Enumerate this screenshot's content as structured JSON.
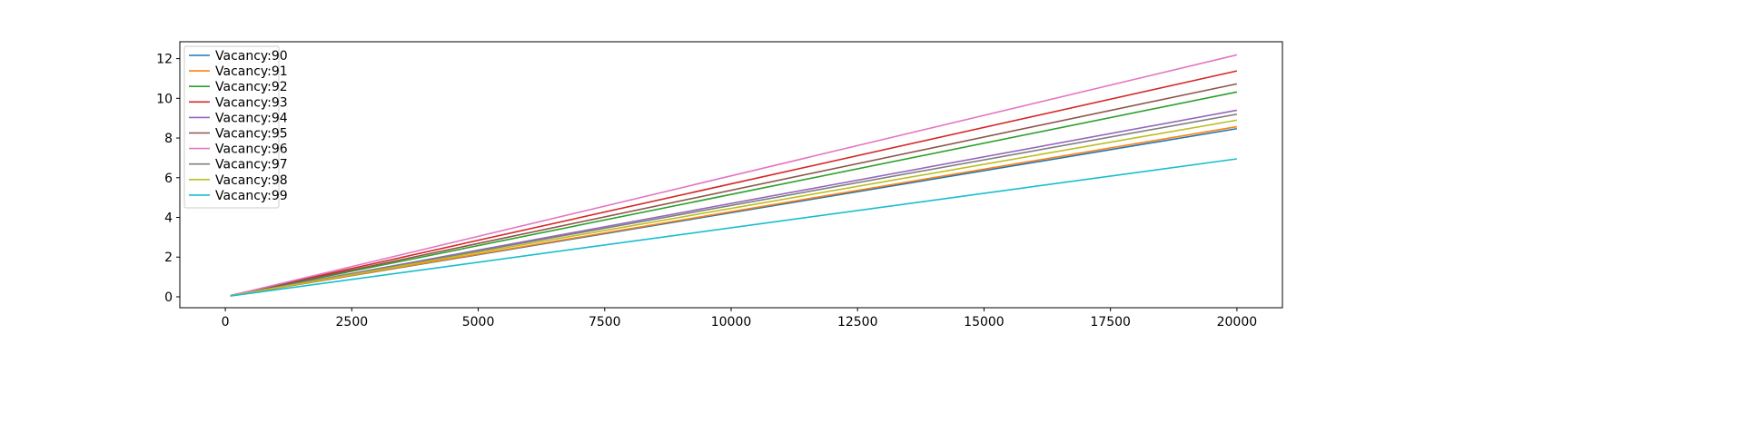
{
  "chart_data": {
    "type": "line",
    "title": "",
    "xlabel": "",
    "ylabel": "",
    "xlim": [
      -900,
      20900
    ],
    "ylim": [
      -0.55,
      12.85
    ],
    "xticks": [
      0,
      2500,
      5000,
      7500,
      10000,
      12500,
      15000,
      17500,
      20000
    ],
    "xtick_labels": [
      "0",
      "2500",
      "5000",
      "7500",
      "10000",
      "12500",
      "15000",
      "17500",
      "20000"
    ],
    "yticks": [
      0,
      2,
      4,
      6,
      8,
      10,
      12
    ],
    "ytick_labels": [
      "0",
      "2",
      "4",
      "6",
      "8",
      "10",
      "12"
    ],
    "grid": false,
    "legend_position": "upper-left",
    "series": [
      {
        "name": "Vacancy:90",
        "color": "#1f77b4",
        "x": [
          100,
          20000
        ],
        "y": [
          0.05,
          8.47
        ]
      },
      {
        "name": "Vacancy:91",
        "color": "#ff7f0e",
        "x": [
          100,
          20000
        ],
        "y": [
          0.05,
          8.57
        ]
      },
      {
        "name": "Vacancy:92",
        "color": "#2ca02c",
        "x": [
          100,
          20000
        ],
        "y": [
          0.05,
          10.32
        ]
      },
      {
        "name": "Vacancy:93",
        "color": "#d62728",
        "x": [
          100,
          20000
        ],
        "y": [
          0.06,
          11.38
        ]
      },
      {
        "name": "Vacancy:94",
        "color": "#9467bd",
        "x": [
          100,
          20000
        ],
        "y": [
          0.05,
          9.4
        ]
      },
      {
        "name": "Vacancy:95",
        "color": "#8c564b",
        "x": [
          100,
          20000
        ],
        "y": [
          0.06,
          10.73
        ]
      },
      {
        "name": "Vacancy:96",
        "color": "#e377c2",
        "x": [
          100,
          20000
        ],
        "y": [
          0.06,
          12.19
        ]
      },
      {
        "name": "Vacancy:97",
        "color": "#7f7f7f",
        "x": [
          100,
          20000
        ],
        "y": [
          0.05,
          9.2
        ]
      },
      {
        "name": "Vacancy:98",
        "color": "#bcbd22",
        "x": [
          100,
          20000
        ],
        "y": [
          0.05,
          8.9
        ]
      },
      {
        "name": "Vacancy:99",
        "color": "#17becf",
        "x": [
          100,
          20000
        ],
        "y": [
          0.04,
          6.95
        ]
      }
    ]
  }
}
